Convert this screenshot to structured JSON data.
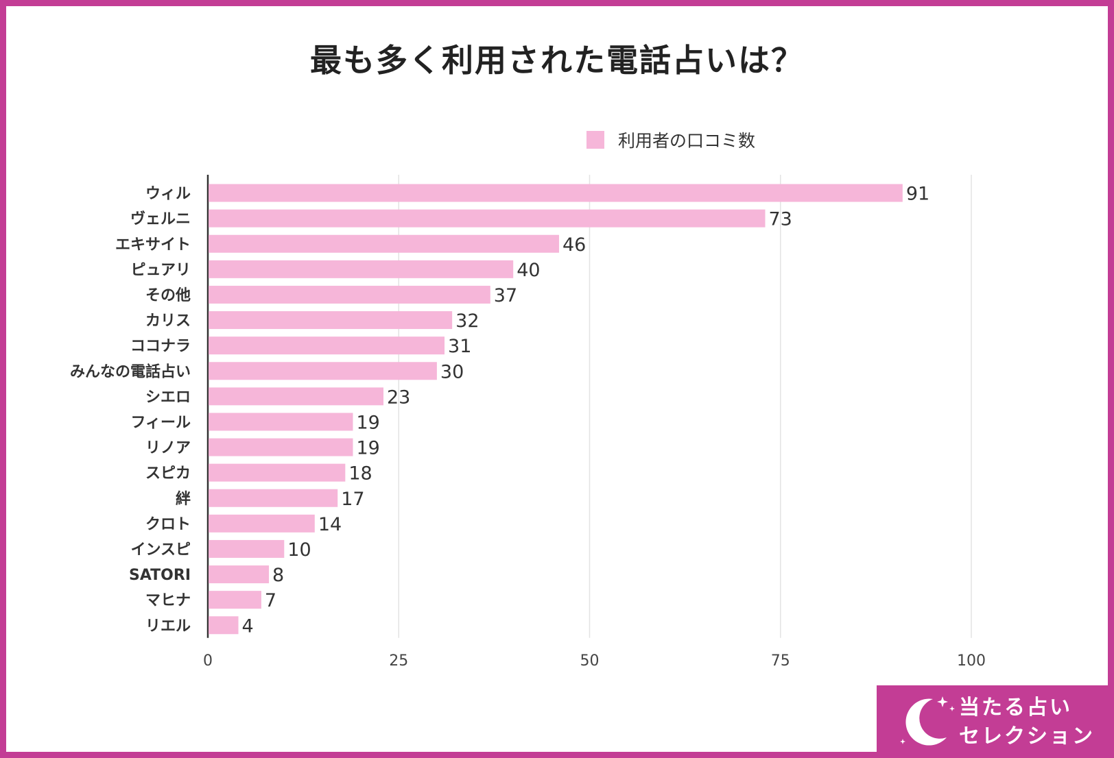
{
  "chart_data": {
    "type": "bar",
    "orientation": "horizontal",
    "title": "最も多く利用された電話占いは？",
    "legend": [
      "利用者の口コミ数"
    ],
    "legend_position": "top-right",
    "categories": [
      "ウィル",
      "ヴェルニ",
      "エキサイト",
      "ピュアリ",
      "その他",
      "カリス",
      "ココナラ",
      "みんなの電話占い",
      "シエロ",
      "フィール",
      "リノア",
      "スピカ",
      "絆",
      "クロト",
      "インスピ",
      "SATORI",
      "マヒナ",
      "リエル"
    ],
    "series": [
      {
        "name": "利用者の口コミ数",
        "values": [
          91,
          73,
          46,
          40,
          37,
          32,
          31,
          30,
          23,
          19,
          19,
          18,
          17,
          14,
          10,
          8,
          7,
          4
        ]
      }
    ],
    "xlim": [
      0,
      100
    ],
    "xticks": [
      0,
      25,
      50,
      75,
      100
    ],
    "xtick_labels": [
      "0",
      "25",
      "50",
      "75",
      "100"
    ],
    "grid": true,
    "bar_color": "#f6b6d9"
  },
  "brand": {
    "line1": "当たる占い",
    "line2": "セレクション",
    "color": "#c33d95"
  }
}
